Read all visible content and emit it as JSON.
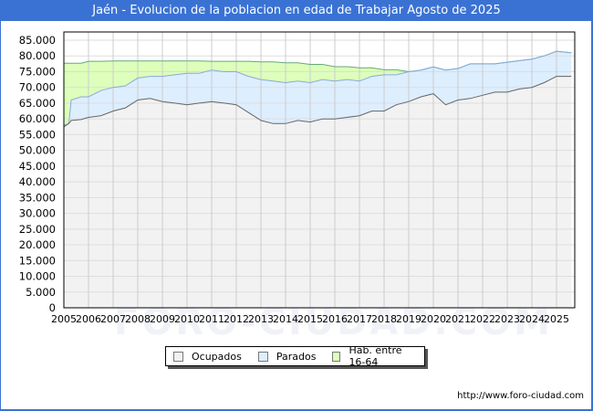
{
  "title": "Jaén - Evolucion de la poblacion en edad de Trabajar Agosto de 2025",
  "footer_url": "http://www.foro-ciudad.com",
  "watermark": "FORO-CIUDAD.COM",
  "legend": [
    {
      "label": "Ocupados",
      "color": "#f2f2f2"
    },
    {
      "label": "Parados",
      "color": "#ddeeff"
    },
    {
      "label": "Hab. entre 16-64",
      "color": "#ddffbb"
    }
  ],
  "chart_data": {
    "type": "area",
    "title": "Jaén - Evolucion de la poblacion en edad de Trabajar Agosto de 2025",
    "xlabel": "",
    "ylabel": "",
    "ylim": [
      0,
      85000
    ],
    "yticks": [
      "0",
      "5.000",
      "10.000",
      "15.000",
      "20.000",
      "25.000",
      "30.000",
      "35.000",
      "40.000",
      "45.000",
      "50.000",
      "55.000",
      "60.000",
      "65.000",
      "70.000",
      "75.000",
      "80.000",
      "85.000"
    ],
    "xticks": [
      "2005",
      "2006",
      "2007",
      "2008",
      "2009",
      "2010",
      "2011",
      "2012",
      "2013",
      "2014",
      "2015",
      "2016",
      "2017",
      "2018",
      "2019",
      "2020",
      "2021",
      "2022",
      "2023",
      "2024",
      "2025"
    ],
    "grid": true,
    "legend_position": "bottom",
    "x": [
      2005.0,
      2005.2,
      2005.3,
      2005.7,
      2006.0,
      2006.5,
      2007.0,
      2007.5,
      2008.0,
      2008.5,
      2009.0,
      2009.5,
      2010.0,
      2010.5,
      2011.0,
      2011.5,
      2012.0,
      2012.5,
      2013.0,
      2013.5,
      2014.0,
      2014.5,
      2015.0,
      2015.5,
      2016.0,
      2016.5,
      2017.0,
      2017.5,
      2018.0,
      2018.5,
      2019.0,
      2019.5,
      2020.0,
      2020.5,
      2021.0,
      2021.5,
      2022.0,
      2022.5,
      2023.0,
      2023.5,
      2024.0,
      2024.5,
      2025.0,
      2025.6
    ],
    "series": [
      {
        "name": "Ocupados",
        "values": [
          57500,
          58500,
          59500,
          59800,
          60500,
          61000,
          62500,
          63500,
          66000,
          66500,
          65500,
          65000,
          64500,
          65000,
          65500,
          65000,
          64500,
          62000,
          59500,
          58500,
          58500,
          59500,
          59000,
          60000,
          60000,
          60500,
          61000,
          62500,
          62500,
          64500,
          65500,
          67000,
          68000,
          64500,
          66000,
          66500,
          67500,
          68500,
          68500,
          69500,
          70000,
          71500,
          73500,
          73500
        ]
      },
      {
        "name": "Parados",
        "values": [
          58000,
          58500,
          66000,
          67000,
          67000,
          69000,
          70000,
          70500,
          73000,
          73500,
          73500,
          74000,
          74500,
          74500,
          75500,
          75000,
          75000,
          73500,
          72500,
          72000,
          71500,
          72000,
          71500,
          72500,
          72000,
          72500,
          72000,
          73500,
          74000,
          74000,
          75000,
          75500,
          76500,
          75500,
          76000,
          77500,
          77500,
          77500,
          78000,
          78500,
          79000,
          80000,
          81500,
          81000
        ]
      },
      {
        "name": "Hab. entre 16-64",
        "values": [
          77700,
          77700,
          77700,
          77700,
          78300,
          78300,
          78400,
          78400,
          78400,
          78400,
          78400,
          78400,
          78400,
          78400,
          78300,
          78300,
          78300,
          78300,
          78100,
          78100,
          77800,
          77800,
          77300,
          77300,
          76600,
          76600,
          76200,
          76200,
          75600,
          75600,
          75000,
          75500,
          76500,
          75500,
          76000,
          77500,
          77500,
          77500,
          78000,
          78500,
          79000,
          80000,
          81500,
          81000
        ]
      }
    ]
  }
}
